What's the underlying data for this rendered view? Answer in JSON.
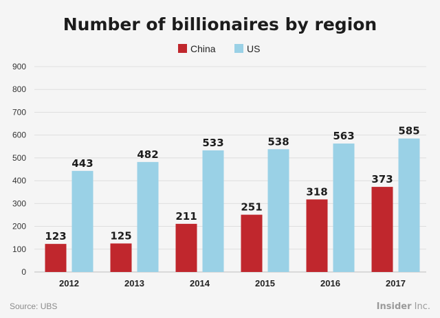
{
  "chart_data": {
    "type": "bar",
    "title": "Number of billionaires by region",
    "categories": [
      "2012",
      "2013",
      "2014",
      "2015",
      "2016",
      "2017"
    ],
    "series": [
      {
        "name": "China",
        "color": "#c0272d",
        "values": [
          123,
          125,
          211,
          251,
          318,
          373
        ]
      },
      {
        "name": "US",
        "color": "#9ad1e6",
        "values": [
          443,
          482,
          533,
          538,
          563,
          585
        ]
      }
    ],
    "ylim": [
      0,
      900
    ],
    "yticks": [
      0,
      100,
      200,
      300,
      400,
      500,
      600,
      700,
      800,
      900
    ],
    "xlabel": "",
    "ylabel": "",
    "legend_position": "top-center",
    "grid": true
  },
  "footer": {
    "source": "Source: UBS",
    "brand_bold": "Insider",
    "brand_light": " Inc."
  }
}
